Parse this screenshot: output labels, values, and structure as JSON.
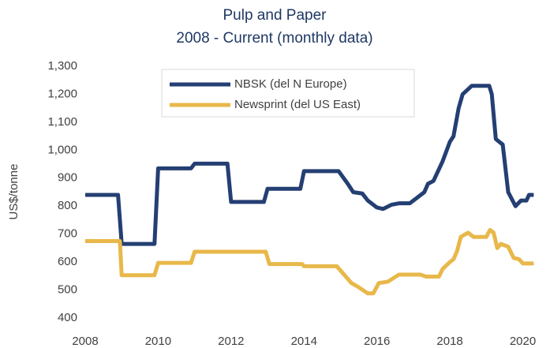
{
  "chart_data": {
    "type": "line",
    "title": "Pulp and Paper",
    "subtitle": "2008 - Current (monthly data)",
    "y_label": "US$/tonne",
    "xlim": [
      2008,
      2020.4
    ],
    "xticks": [
      2008,
      2010,
      2012,
      2014,
      2016,
      2018,
      2020
    ],
    "ylim": [
      400,
      1300
    ],
    "yticks": [
      400,
      500,
      600,
      700,
      800,
      900,
      {
        "value": 1000,
        "label": "1,000"
      },
      {
        "value": 1100,
        "label": "1,100"
      },
      {
        "value": 1200,
        "label": "1,200"
      },
      {
        "value": 1300,
        "label": "1,300"
      }
    ],
    "grid": false,
    "legend": "top",
    "series": [
      {
        "name": "NBSK (del N Europe)",
        "color": "#243f73",
        "x": [
          2008,
          2008.9,
          2009.0,
          2009.9,
          2010.0,
          2010.9,
          2011.0,
          2011.9,
          2012.0,
          2012.9,
          2013.0,
          2013.9,
          2014.0,
          2014.95,
          2015.2,
          2015.35,
          2015.6,
          2015.75,
          2016.0,
          2016.17,
          2016.4,
          2016.6,
          2016.9,
          2017.1,
          2017.3,
          2017.4,
          2017.55,
          2017.8,
          2018.0,
          2018.1,
          2018.24,
          2018.35,
          2018.6,
          2019.08,
          2019.15,
          2019.26,
          2019.45,
          2019.6,
          2019.8,
          2019.95,
          2020.1,
          2020.17,
          2020.3
        ],
        "values": [
          840,
          840,
          665,
          665,
          935,
          935,
          952,
          952,
          815,
          815,
          862,
          862,
          925,
          925,
          880,
          850,
          845,
          820,
          795,
          790,
          805,
          810,
          810,
          830,
          850,
          880,
          890,
          960,
          1030,
          1050,
          1150,
          1200,
          1230,
          1230,
          1200,
          1040,
          1020,
          850,
          800,
          820,
          820,
          840,
          840
        ]
      },
      {
        "name": "Newsprint (del US East)",
        "color": "#e8b84a",
        "x": [
          2008,
          2008.95,
          2009.0,
          2009.9,
          2010.0,
          2010.9,
          2011.0,
          2012.95,
          2013.05,
          2013.95,
          2014.0,
          2014.9,
          2015.1,
          2015.3,
          2015.5,
          2015.75,
          2015.9,
          2016.05,
          2016.3,
          2016.6,
          2017.2,
          2017.35,
          2017.7,
          2017.8,
          2018.0,
          2018.1,
          2018.2,
          2018.3,
          2018.5,
          2018.65,
          2019.0,
          2019.1,
          2019.2,
          2019.3,
          2019.4,
          2019.6,
          2019.75,
          2019.9,
          2020.0,
          2020.3
        ],
        "values": [
          675,
          675,
          553,
          553,
          597,
          597,
          637,
          637,
          593,
          593,
          585,
          585,
          555,
          525,
          510,
          488,
          488,
          525,
          530,
          555,
          555,
          548,
          548,
          575,
          600,
          610,
          640,
          690,
          705,
          690,
          690,
          715,
          705,
          650,
          665,
          655,
          615,
          610,
          595,
          595
        ]
      }
    ]
  }
}
